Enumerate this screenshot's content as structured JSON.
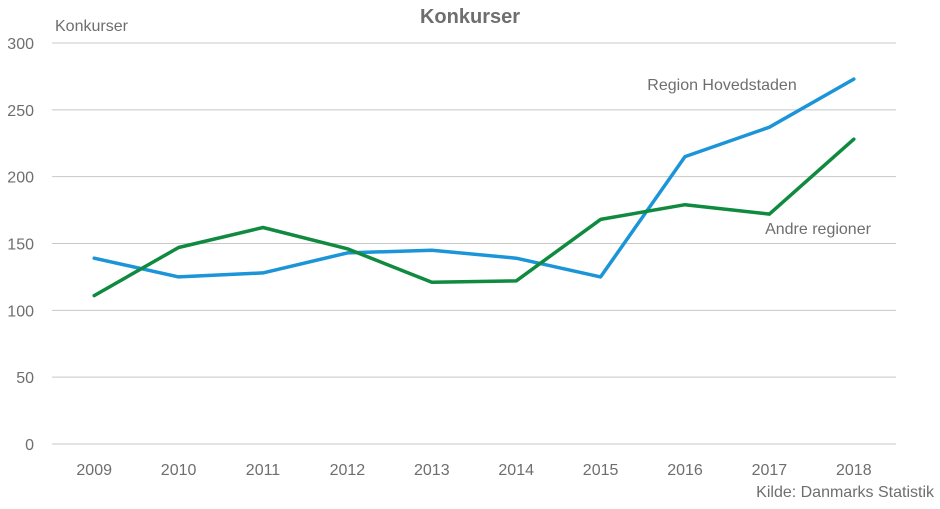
{
  "chart_data": {
    "type": "line",
    "title": "Konkurser",
    "ylabel": "Konkurser",
    "xlabel": "",
    "source": "Kilde: Danmarks Statistik",
    "categories": [
      "2009",
      "2010",
      "2011",
      "2012",
      "2013",
      "2014",
      "2015",
      "2016",
      "2017",
      "2018"
    ],
    "ylim": [
      0,
      300
    ],
    "yticks": [
      0,
      50,
      100,
      150,
      200,
      250,
      300
    ],
    "grid": true,
    "legend": "inline labels",
    "series": [
      {
        "name": "Region Hovedstaden",
        "color": "#1b95d7",
        "values": [
          139,
          125,
          128,
          143,
          145,
          139,
          125,
          215,
          237,
          273
        ]
      },
      {
        "name": "Andre regioner",
        "color": "#0f8a3e",
        "values": [
          111,
          147,
          162,
          146,
          121,
          122,
          168,
          179,
          172,
          228
        ]
      }
    ]
  }
}
